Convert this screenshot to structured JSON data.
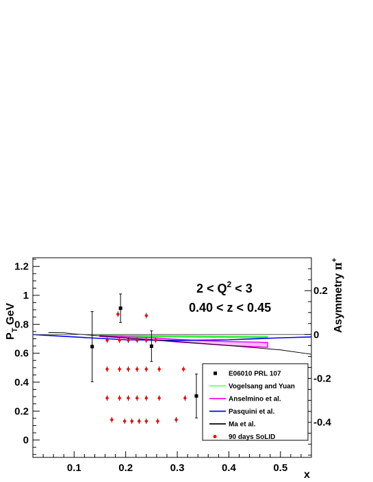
{
  "chart_data": {
    "type": "scatter",
    "xlabel": "x",
    "ylabel_left": {
      "main": "P",
      "sub": "T",
      "unit": " GeV"
    },
    "ylabel_right": {
      "main": "Asymmetry ",
      "greek": "π",
      "sup": "+"
    },
    "xlim": [
      0.02,
      0.56
    ],
    "ylim_left": [
      -0.12,
      1.26
    ],
    "ylim_right": [
      -0.56,
      0.35
    ],
    "x_ticks": [
      0.1,
      0.2,
      0.3,
      0.4,
      0.5
    ],
    "x_tick_labels": [
      "0.1",
      "0.2",
      "0.3",
      "0.4",
      "0.5"
    ],
    "y_left_ticks": [
      0,
      0.2,
      0.4,
      0.6,
      0.8,
      1,
      1.2
    ],
    "y_left_tick_labels": [
      "0",
      "0.2",
      "0.4",
      "0.6",
      "0.8",
      "1",
      "1.2"
    ],
    "y_right_ticks": [
      -0.4,
      -0.2,
      0,
      0.2
    ],
    "y_right_tick_labels": [
      "-0.4",
      "-0.2",
      "0",
      "0.2"
    ],
    "annotations": {
      "q2_prefix": "2 < Q",
      "q2_sup": "2",
      "q2_suffix": " < 3",
      "z_range": "0.40 < z < 0.45"
    },
    "legend": {
      "placement": "bottom-right",
      "entries": [
        {
          "label": "E06010 PRL 107",
          "marker": "square",
          "color": "#000000"
        },
        {
          "label": "Vogelsang and Yuan",
          "marker": "line",
          "color": "#66ff66"
        },
        {
          "label": "Anselmino et al.",
          "marker": "line",
          "color": "#ff00ff"
        },
        {
          "label": "Pasquini et al.",
          "marker": "line",
          "color": "#0000ff"
        },
        {
          "label": "Ma et al.",
          "marker": "line",
          "color": "#000000"
        },
        {
          "label": "90 days SoLID",
          "marker": "circle",
          "color": "#ff0000"
        }
      ]
    },
    "series": [
      {
        "name": "E06010 PRL 107",
        "axis": "right",
        "color": "#000000",
        "points": [
          {
            "x": 0.135,
            "y": -0.055,
            "err": 0.16
          },
          {
            "x": 0.19,
            "y": 0.12,
            "err": 0.065
          },
          {
            "x": 0.25,
            "y": -0.053,
            "err": 0.07
          },
          {
            "x": 0.337,
            "y": -0.28,
            "err": 0.1
          }
        ]
      },
      {
        "name": "90 days SoLID",
        "axis": "left",
        "color": "#ff0000",
        "points": [
          {
            "x": 0.164,
            "y": 0.69
          },
          {
            "x": 0.188,
            "y": 0.69
          },
          {
            "x": 0.205,
            "y": 0.69
          },
          {
            "x": 0.222,
            "y": 0.69
          },
          {
            "x": 0.24,
            "y": 0.69
          },
          {
            "x": 0.258,
            "y": 0.69
          },
          {
            "x": 0.185,
            "y": 0.87
          },
          {
            "x": 0.24,
            "y": 0.86
          },
          {
            "x": 0.164,
            "y": 0.49
          },
          {
            "x": 0.188,
            "y": 0.49
          },
          {
            "x": 0.205,
            "y": 0.49
          },
          {
            "x": 0.222,
            "y": 0.49
          },
          {
            "x": 0.24,
            "y": 0.49
          },
          {
            "x": 0.265,
            "y": 0.49
          },
          {
            "x": 0.312,
            "y": 0.49
          },
          {
            "x": 0.164,
            "y": 0.29
          },
          {
            "x": 0.188,
            "y": 0.29
          },
          {
            "x": 0.205,
            "y": 0.29
          },
          {
            "x": 0.222,
            "y": 0.29
          },
          {
            "x": 0.24,
            "y": 0.29
          },
          {
            "x": 0.265,
            "y": 0.29
          },
          {
            "x": 0.315,
            "y": 0.29
          },
          {
            "x": 0.173,
            "y": 0.14
          },
          {
            "x": 0.198,
            "y": 0.13
          },
          {
            "x": 0.212,
            "y": 0.13
          },
          {
            "x": 0.226,
            "y": 0.13
          },
          {
            "x": 0.24,
            "y": 0.13
          },
          {
            "x": 0.262,
            "y": 0.13
          },
          {
            "x": 0.298,
            "y": 0.14
          }
        ]
      },
      {
        "name": "Vogelsang and Yuan",
        "axis": "right",
        "color": "#33ee33",
        "band": {
          "x": [
            0.15,
            0.2,
            0.3,
            0.4,
            0.475
          ],
          "upper": [
            -0.003,
            -0.004,
            -0.006,
            -0.008,
            -0.009
          ],
          "lower": [
            -0.006,
            -0.009,
            -0.011,
            -0.013,
            -0.014
          ]
        }
      },
      {
        "name": "Anselmino et al.",
        "axis": "right",
        "color": "#ff00ff",
        "band": {
          "x": [
            0.15,
            0.2,
            0.25,
            0.3,
            0.35,
            0.4,
            0.475
          ],
          "upper": [
            -0.005,
            -0.01,
            -0.015,
            -0.022,
            -0.028,
            -0.032,
            -0.036
          ],
          "lower": [
            -0.009,
            -0.016,
            -0.024,
            -0.034,
            -0.042,
            -0.05,
            -0.058
          ]
        }
      },
      {
        "name": "Pasquini et al.",
        "axis": "right",
        "color": "#0000ff",
        "line": {
          "x": [
            0.02,
            0.1,
            0.2,
            0.3,
            0.4,
            0.5,
            0.56
          ],
          "y": [
            0.0,
            -0.011,
            -0.024,
            -0.027,
            -0.024,
            -0.015,
            -0.011
          ]
        }
      },
      {
        "name": "Ma et al.",
        "axis": "right",
        "color": "#000000",
        "line": {
          "x": [
            0.05,
            0.08,
            0.1,
            0.15,
            0.2,
            0.25,
            0.3,
            0.35,
            0.4,
            0.45,
            0.5,
            0.56
          ],
          "y": [
            0.009,
            0.008,
            0.003,
            -0.006,
            -0.015,
            -0.024,
            -0.032,
            -0.041,
            -0.05,
            -0.06,
            -0.07,
            -0.09
          ]
        }
      },
      {
        "name": "zero-reference",
        "axis": "right",
        "color": "#555555",
        "line": {
          "x": [
            0.02,
            0.56
          ],
          "y": [
            0.0,
            0.0
          ]
        }
      }
    ]
  }
}
